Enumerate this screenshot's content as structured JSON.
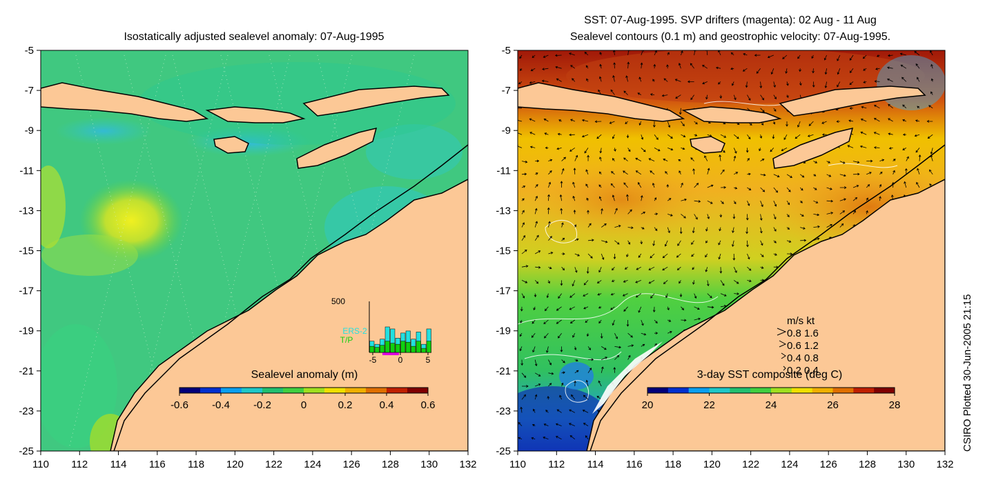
{
  "left_panel": {
    "title": "Isostatically adjusted sealevel anomaly: 07-Aug-1995",
    "colorbar": {
      "label": "Sealevel anomaly (m)",
      "ticks": [
        "-0.6",
        "-0.4",
        "-0.2",
        "0",
        "0.2",
        "0.4",
        "0.6"
      ],
      "colors": [
        "#00007a",
        "#0030d0",
        "#0aa0f0",
        "#1ec8c8",
        "#22c070",
        "#40d040",
        "#a0e020",
        "#f0e000",
        "#f0b000",
        "#e07000",
        "#c02000",
        "#800000"
      ]
    },
    "histogram": {
      "ymax_label": "500",
      "xticks": [
        "-5",
        "0",
        "5"
      ],
      "series": [
        {
          "name": "ERS-2",
          "color": "#22e0e0",
          "values": [
            110,
            80,
            130,
            250,
            230,
            140,
            190,
            210,
            130,
            200,
            80,
            230
          ]
        },
        {
          "name": "T/P",
          "color": "#10d010",
          "values": [
            60,
            50,
            70,
            110,
            90,
            80,
            110,
            100,
            60,
            110,
            40,
            110
          ]
        }
      ]
    }
  },
  "right_panel": {
    "title_line1": "SST: 07-Aug-1995. SVP drifters (magenta): 02 Aug - 11 Aug",
    "title_line2": "Sealevel contours (0.1 m) and geostrophic velocity: 07-Aug-1995.",
    "colorbar": {
      "label": "3-day SST composite (deg C)",
      "ticks": [
        "20",
        "22",
        "24",
        "26",
        "28"
      ],
      "colors": [
        "#00007a",
        "#0030d0",
        "#0aa0f0",
        "#1ec8c8",
        "#22c070",
        "#40d040",
        "#a0e020",
        "#f0e000",
        "#f0b000",
        "#e07000",
        "#c02000",
        "#800000"
      ]
    },
    "velocity_legend": {
      "header": "m/s  kt",
      "rows": [
        "0.8  1.6",
        "0.6  1.2",
        "0.4  0.8",
        "0.2  0.4"
      ]
    }
  },
  "axes": {
    "x_ticks": [
      "110",
      "112",
      "114",
      "116",
      "118",
      "120",
      "122",
      "124",
      "126",
      "128",
      "130",
      "132"
    ],
    "y_ticks": [
      "-5",
      "-7",
      "-9",
      "-11",
      "-13",
      "-15",
      "-17",
      "-19",
      "-21",
      "-23",
      "-25"
    ],
    "xlim": [
      110,
      132
    ],
    "ylim": [
      -25,
      -5
    ]
  },
  "colors": {
    "land": "#fcc896",
    "coast": "#000000"
  },
  "footer": "CSIRO Plotted 30-Jun-2005 21:15"
}
